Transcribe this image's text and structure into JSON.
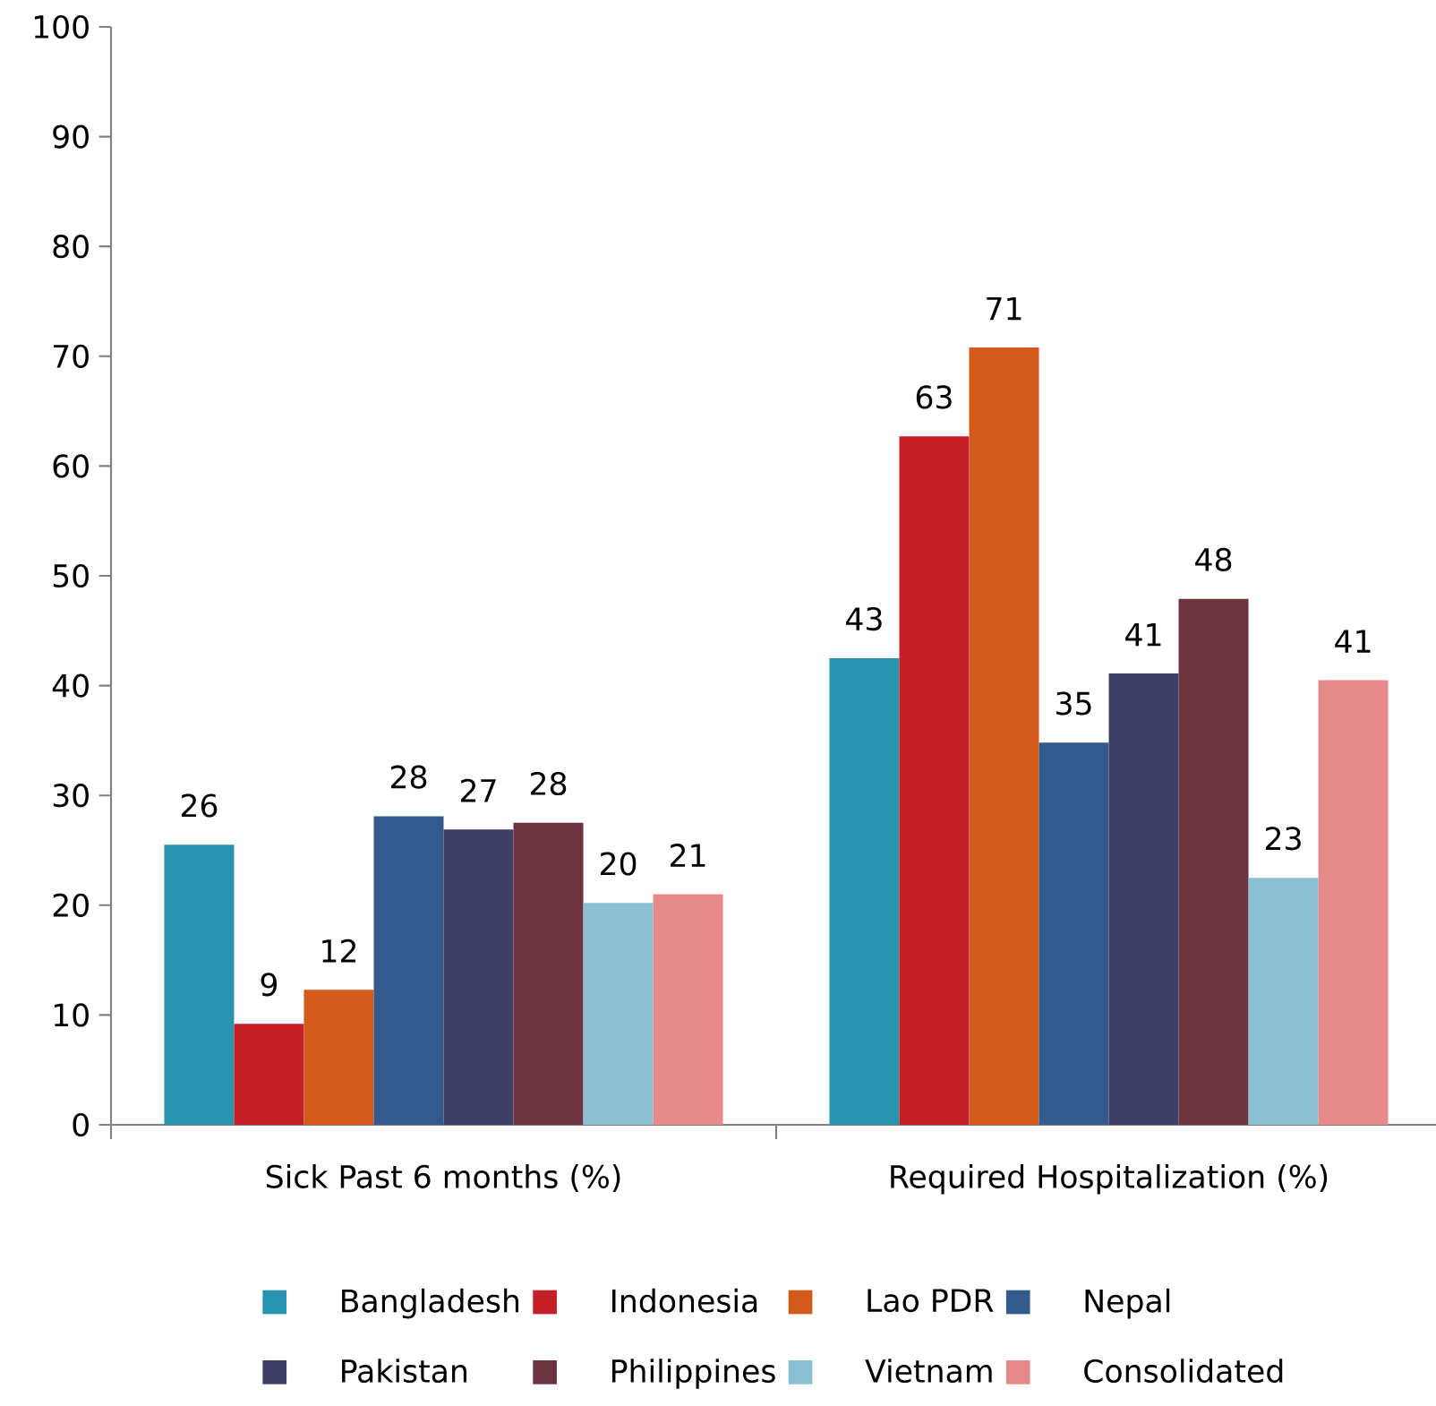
{
  "chart_data": {
    "type": "bar",
    "categories": [
      "Sick Past 6 months (%)",
      "Required Hospitalization (%)"
    ],
    "series": [
      {
        "name": "Bangladesh",
        "color": "#2a93ad",
        "values": [
          25.5,
          42.5
        ],
        "value_labels": [
          "26",
          "43"
        ]
      },
      {
        "name": "Indonesia",
        "color": "#c4202a",
        "values": [
          9.2,
          62.7
        ],
        "value_labels": [
          "9",
          "63"
        ]
      },
      {
        "name": "Lao PDR",
        "color": "#d35a1a",
        "values": [
          12.3,
          70.8
        ],
        "value_labels": [
          "12",
          "71"
        ]
      },
      {
        "name": "Nepal",
        "color": "#345a8c",
        "values": [
          28.1,
          34.8
        ],
        "value_labels": [
          "28",
          "35"
        ]
      },
      {
        "name": "Pakistan",
        "color": "#3e3e66",
        "values": [
          26.9,
          41.1
        ],
        "value_labels": [
          "27",
          "41"
        ]
      },
      {
        "name": "Philippines",
        "color": "#6e3340",
        "values": [
          27.5,
          47.9
        ],
        "value_labels": [
          "28",
          "48"
        ]
      },
      {
        "name": "Vietnam",
        "color": "#8bbfd2",
        "values": [
          20.2,
          22.5
        ],
        "value_labels": [
          "20",
          "23"
        ]
      },
      {
        "name": "Consolidated",
        "color": "#e5898a",
        "values": [
          21.0,
          40.5
        ],
        "value_labels": [
          "21",
          "41"
        ]
      }
    ],
    "ylim": [
      0,
      100
    ],
    "yticks": [
      0,
      10,
      20,
      30,
      40,
      50,
      60,
      70,
      80,
      90,
      100
    ],
    "grid": false,
    "legend": "bottom"
  }
}
